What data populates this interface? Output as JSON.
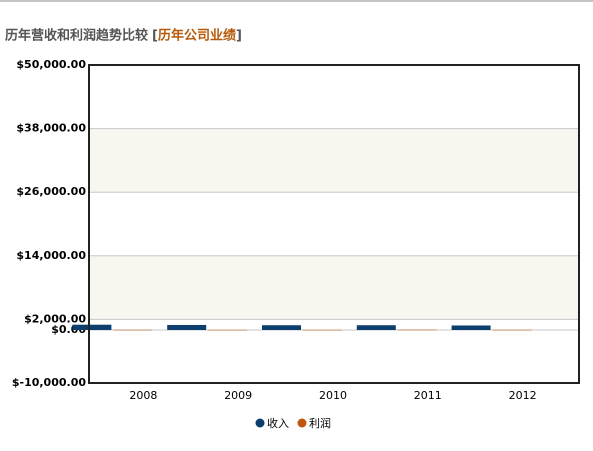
{
  "chart_data": {
    "type": "bar",
    "title": "历年营收和利润趋势比较",
    "subtitle_brackets": [
      "[",
      "]"
    ],
    "subtitle": "历年公司业绩",
    "categories": [
      "2008",
      "2009",
      "2010",
      "2011",
      "2012"
    ],
    "series": [
      {
        "name": "收入",
        "color": "#0d3f6e",
        "values": [
          1000,
          950,
          900,
          900,
          850
        ]
      },
      {
        "name": "利润",
        "color": "#c0560c",
        "values": [
          40,
          30,
          30,
          60,
          40
        ]
      }
    ],
    "ylim": [
      -10000,
      50000
    ],
    "yticks": [
      {
        "value": -10000,
        "label": "$-10,000.00"
      },
      {
        "value": 0,
        "label": "$0.00"
      },
      {
        "value": 2000,
        "label": "$2,000.00"
      },
      {
        "value": 14000,
        "label": "$14,000.00"
      },
      {
        "value": 26000,
        "label": "$26,000.00"
      },
      {
        "value": 38000,
        "label": "$38,000.00"
      },
      {
        "value": 50000,
        "label": "$50,000.00"
      }
    ],
    "grid": true,
    "legend": "bottom"
  }
}
